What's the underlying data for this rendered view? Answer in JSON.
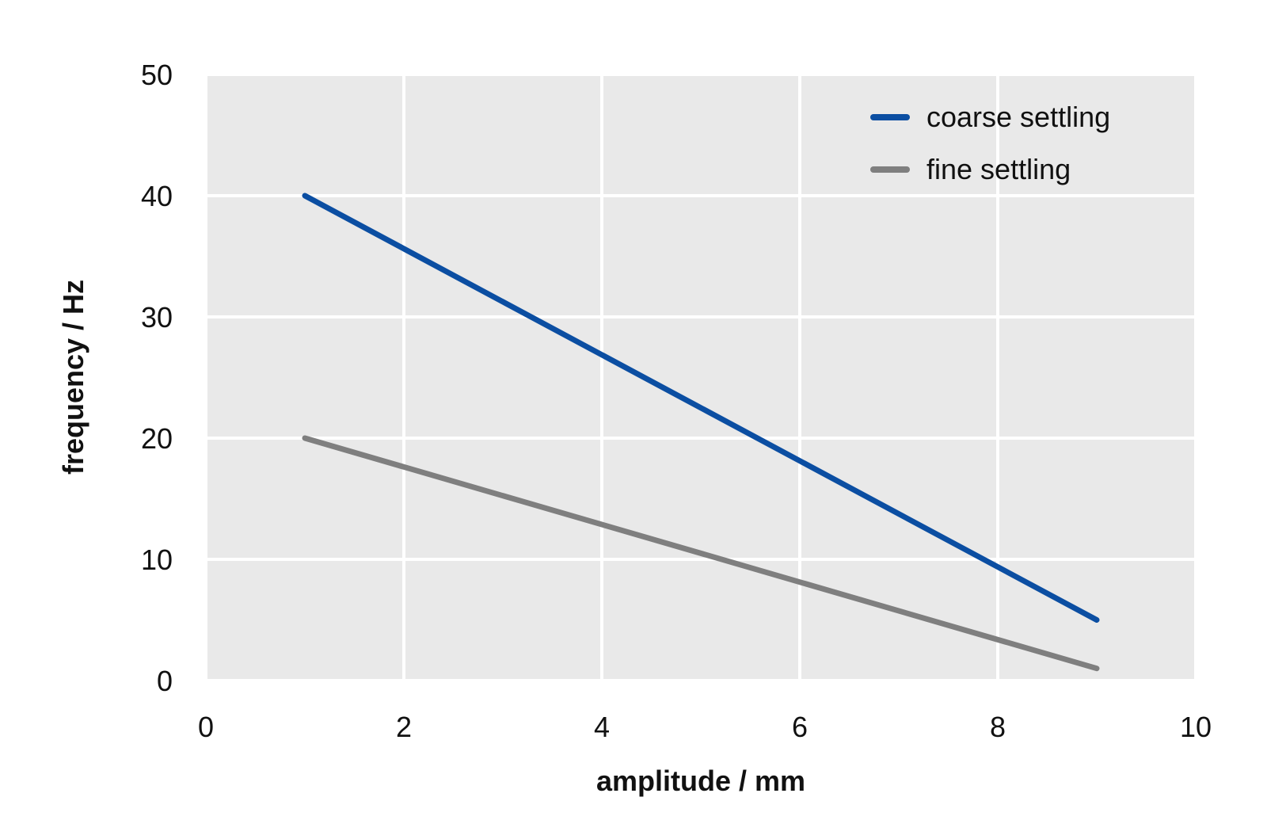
{
  "chart_data": {
    "type": "line",
    "title": "",
    "xlabel": "amplitude / mm",
    "ylabel": "frequency / Hz",
    "xlim": [
      0,
      10
    ],
    "ylim": [
      0,
      50
    ],
    "x_ticks": [
      "0",
      "2",
      "4",
      "6",
      "8",
      "10"
    ],
    "y_ticks": [
      "0",
      "10",
      "20",
      "30",
      "40",
      "50"
    ],
    "grid": true,
    "legend_position": "top-right",
    "series": [
      {
        "name": "coarse settling",
        "color": "#0b4ea2",
        "x": [
          1,
          9
        ],
        "y": [
          40,
          5
        ]
      },
      {
        "name": "fine settling",
        "color": "#7f7f7f",
        "x": [
          1,
          9
        ],
        "y": [
          20,
          1
        ]
      }
    ]
  }
}
